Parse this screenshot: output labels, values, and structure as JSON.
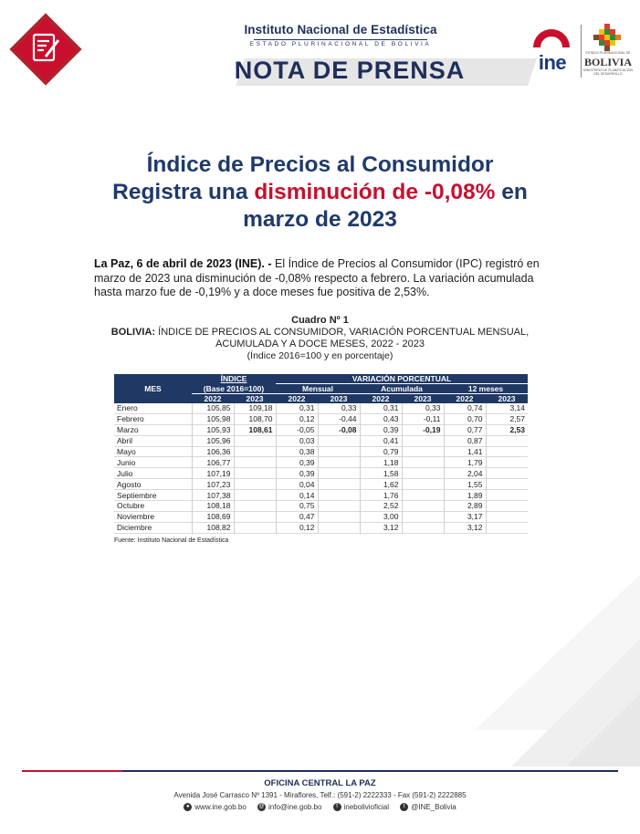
{
  "header": {
    "org_name": "Instituto Nacional de Estadística",
    "org_sub": "ESTADO PLURINACIONAL DE BOLIVIA",
    "press_title": "NOTA DE PRENSA",
    "ine_logo_text": "ine",
    "bolivia_small": "ESTADO PLURINACIONAL DE",
    "bolivia_word": "BOLIVIA",
    "bolivia_ministry": "MINISTERIO DE PLANIFICACIÓN DEL DESARROLLO",
    "icons": [
      "document-pen-icon",
      "ine-logo",
      "bolivia-seal"
    ],
    "colors": {
      "navy": "#1f2f5c",
      "red": "#c8102e",
      "table_header": "#1f3864"
    }
  },
  "headline": {
    "line1": "Índice de Precios al Consumidor",
    "line2_a": "Registra una ",
    "line2_red": "disminución de -0,08%",
    "line2_b": " en",
    "line3": "marzo de 2023"
  },
  "lead": {
    "dateline": "La Paz, 6 de abril de 2023 (INE). -",
    "body": " El Índice de Precios al Consumidor (IPC) registró en marzo de 2023 una disminución de -0,08% respecto a febrero. La variación acumulada hasta marzo fue de -0,19% y a doce meses fue positiva de 2,53%."
  },
  "table": {
    "caption_number": "Cuadro Nº 1",
    "caption_country": "BOLIVIA:",
    "caption_title": " ÍNDICE DE PRECIOS AL CONSUMIDOR, VARIACIÓN PORCENTUAL MENSUAL, ACUMULADA Y A DOCE MESES, 2022 - 2023",
    "caption_base": "(Índice 2016=100 y en porcentaje)",
    "h_mes": "MES",
    "h_indice": "ÍNDICE",
    "h_base": "(Base 2016=100)",
    "h_variacion": "VARIACIÓN PORCENTUAL",
    "h_mensual": "Mensual",
    "h_acumulada": "Acumulada",
    "h_12meses": "12 meses",
    "h_2022": "2022",
    "h_2023": "2023",
    "rows": [
      [
        "Enero",
        "105,85",
        "109,18",
        "0,31",
        "0,33",
        "0,31",
        "0,33",
        "0,74",
        "3,14"
      ],
      [
        "Febrero",
        "105,98",
        "108,70",
        "0,12",
        "-0,44",
        "0,43",
        "-0,11",
        "0,70",
        "2,57"
      ],
      [
        "Marzo",
        "105,93",
        "108,61",
        "-0,05",
        "-0,08",
        "0,39",
        "-0,19",
        "0,77",
        "2,53"
      ],
      [
        "Abril",
        "105,96",
        "",
        "0,03",
        "",
        "0,41",
        "",
        "0,87",
        ""
      ],
      [
        "Mayo",
        "106,36",
        "",
        "0,38",
        "",
        "0,79",
        "",
        "1,41",
        ""
      ],
      [
        "Junio",
        "106,77",
        "",
        "0,39",
        "",
        "1,18",
        "",
        "1,79",
        ""
      ],
      [
        "Julio",
        "107,19",
        "",
        "0,39",
        "",
        "1,58",
        "",
        "2,04",
        ""
      ],
      [
        "Agosto",
        "107,23",
        "",
        "0,04",
        "",
        "1,62",
        "",
        "1,55",
        ""
      ],
      [
        "Septiembre",
        "107,38",
        "",
        "0,14",
        "",
        "1,76",
        "",
        "1,89",
        ""
      ],
      [
        "Octubre",
        "108,18",
        "",
        "0,75",
        "",
        "2,52",
        "",
        "2,89",
        ""
      ],
      [
        "Noviembre",
        "108,69",
        "",
        "0,47",
        "",
        "3,00",
        "",
        "3,17",
        ""
      ],
      [
        "Diciembre",
        "108,82",
        "",
        "0,12",
        "",
        "3,12",
        "",
        "3,12",
        ""
      ]
    ],
    "source": "Fuente: Instituto Nacional de Estadística"
  },
  "footer": {
    "office": "OFICINA CENTRAL LA PAZ",
    "address": "Avenida José Carrasco Nº 1391 - Miraflores, Telf.: (591-2) 2222333 - Fax (591-2) 2222885",
    "web": "www.ine.gob.bo",
    "email": "info@ine.gob.bo",
    "facebook": "inebolivioficial",
    "twitter": "@INE_Bolivia"
  }
}
